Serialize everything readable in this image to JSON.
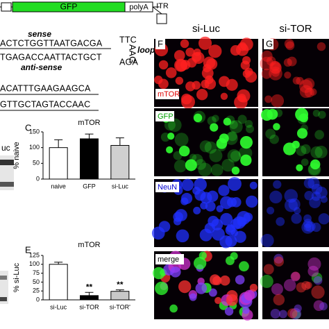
{
  "construct": {
    "gfp": "GFP",
    "polya": "polyA",
    "itr": "ITR"
  },
  "hairpin": {
    "sense_label": "sense",
    "sense": "ACTCTGGTTAATGACGA",
    "loop_top": "TTC",
    "loop_side": "AAG",
    "loop_label": "loop",
    "antisense": "TGAGACCAATTACTGCT",
    "loop_bottom": "AGA",
    "antisense_label": "anti-sense"
  },
  "sequences": [
    "ACATTTGAAGAAGCA",
    "GTTGCTAGTACCAAC"
  ],
  "blot_label": "uc",
  "chart_data": [
    {
      "type": "bar",
      "panel": "C",
      "title": "mTOR",
      "ylabel": "% naive",
      "categories": [
        "naive",
        "GFP",
        "si-Luc"
      ],
      "values": [
        100,
        128,
        107
      ],
      "errors": [
        25,
        15,
        24
      ],
      "colors": [
        "#ffffff",
        "#000000",
        "#d0d0d0"
      ],
      "ylim": [
        0,
        150
      ],
      "yticks": [
        0,
        50,
        100,
        150
      ]
    },
    {
      "type": "bar",
      "panel": "E",
      "title": "mTOR",
      "ylabel": "% si-Luc",
      "categories": [
        "si-Luc",
        "si-TOR",
        "si-TOR'"
      ],
      "values": [
        100,
        12,
        24
      ],
      "errors": [
        6,
        9,
        4
      ],
      "significance": [
        null,
        "**",
        "**"
      ],
      "colors": [
        "#ffffff",
        "#000000",
        "#c8c8c8"
      ],
      "ylim": [
        0,
        125
      ],
      "yticks": [
        0,
        25,
        50,
        75,
        100,
        125
      ]
    }
  ],
  "images": {
    "columns": [
      {
        "letter": "F",
        "title": "si-Luc"
      },
      {
        "letter": "G",
        "title": "si-TOR"
      }
    ],
    "rows": [
      {
        "label": "mTOR",
        "color": "#e00000"
      },
      {
        "label": "GFP",
        "color": "#00a000"
      },
      {
        "label": "NeuN",
        "color": "#0000d0"
      },
      {
        "label": "merge",
        "color": "#000000"
      }
    ]
  }
}
